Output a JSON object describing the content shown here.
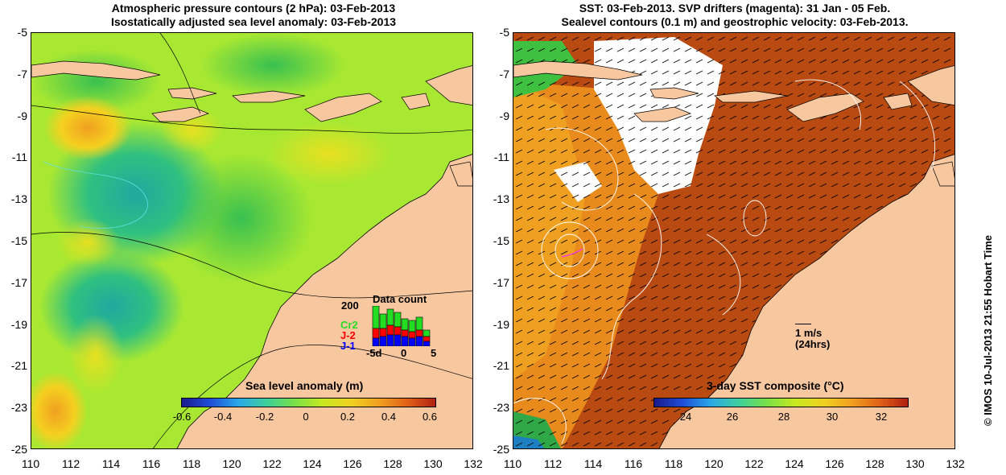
{
  "left_panel": {
    "title_line1": "Atmospheric pressure contours (2 hPa): 03-Feb-2013",
    "title_line2": "Isostatically adjusted sea level anomaly: 03-Feb-2013",
    "colorbar_title": "Sea level anomaly (m)",
    "colorbar_labels": [
      "-0.6",
      "-0.4",
      "-0.2",
      "0",
      "0.2",
      "0.4",
      "0.6"
    ],
    "data_count": {
      "title": "Data count",
      "ymax_label": "200",
      "legend": [
        "Cr2",
        "J-2",
        "J-1"
      ],
      "legend_colors": [
        "#22dd22",
        "#ff0000",
        "#0000ff"
      ],
      "x_labels": [
        "-5d",
        "0",
        "5"
      ]
    }
  },
  "right_panel": {
    "title_line1": "SST: 03-Feb-2013. SVP drifters (magenta): 31 Jan - 05 Feb.",
    "title_line2": "Sealevel contours (0.1 m) and geostrophic velocity: 03-Feb-2013.",
    "colorbar_title": "3-day SST composite (°C)",
    "colorbar_labels": [
      "24",
      "26",
      "28",
      "30",
      "32"
    ],
    "scale_label": "1 m/s",
    "scale_sublabel": "(24hrs)"
  },
  "axes": {
    "y_ticks": [
      "-5",
      "-7",
      "-9",
      "-11",
      "-13",
      "-15",
      "-17",
      "-19",
      "-21",
      "-23",
      "-25"
    ],
    "x_ticks": [
      "110",
      "112",
      "114",
      "116",
      "118",
      "120",
      "122",
      "124",
      "126",
      "128",
      "130",
      "132"
    ]
  },
  "credit": "© IMOS 10-Jul-2013 21:55 Hobart Time",
  "colors": {
    "land": "#f7c7a0",
    "sla_background": "#a8e832",
    "sst_background": "#b84a12"
  }
}
